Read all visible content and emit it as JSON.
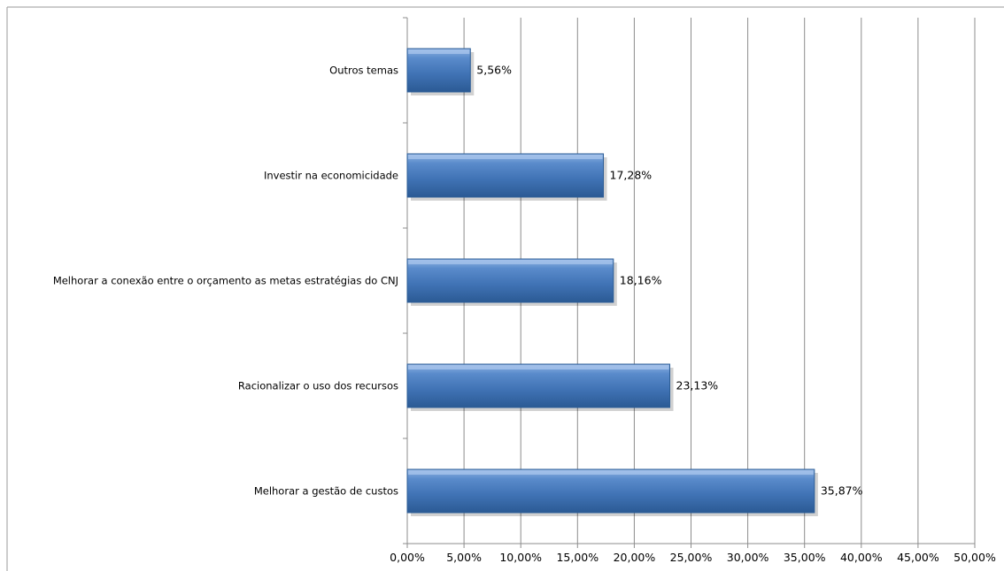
{
  "chart_data": {
    "type": "bar",
    "orientation": "horizontal",
    "title": "",
    "xlabel": "",
    "ylabel": "",
    "categories": [
      "Outros temas",
      "Investir na economicidade",
      "Melhorar a conexão entre o orçamento as metas estratégias do CNJ",
      "Racionalizar o uso dos recursos",
      "Melhorar a gestão de custos"
    ],
    "values": [
      5.56,
      17.28,
      18.16,
      23.13,
      35.87
    ],
    "data_labels": [
      "5,56%",
      "17,28%",
      "18,16%",
      "23,13%",
      "35,87%"
    ],
    "xlim": [
      0,
      50
    ],
    "ticks": [
      0,
      5,
      10,
      15,
      20,
      25,
      30,
      35,
      40,
      45,
      50
    ],
    "tick_labels": [
      "0,00%",
      "5,00%",
      "10,00%",
      "15,00%",
      "20,00%",
      "25,00%",
      "30,00%",
      "35,00%",
      "40,00%",
      "45,00%",
      "50,00%"
    ],
    "grid": true,
    "legend": "none",
    "colors": {
      "bar": "#4a7ebb",
      "bar_dark": "#2c5d96",
      "bar_light": "#7fa8dc",
      "grid": "#8c8c8c"
    }
  }
}
